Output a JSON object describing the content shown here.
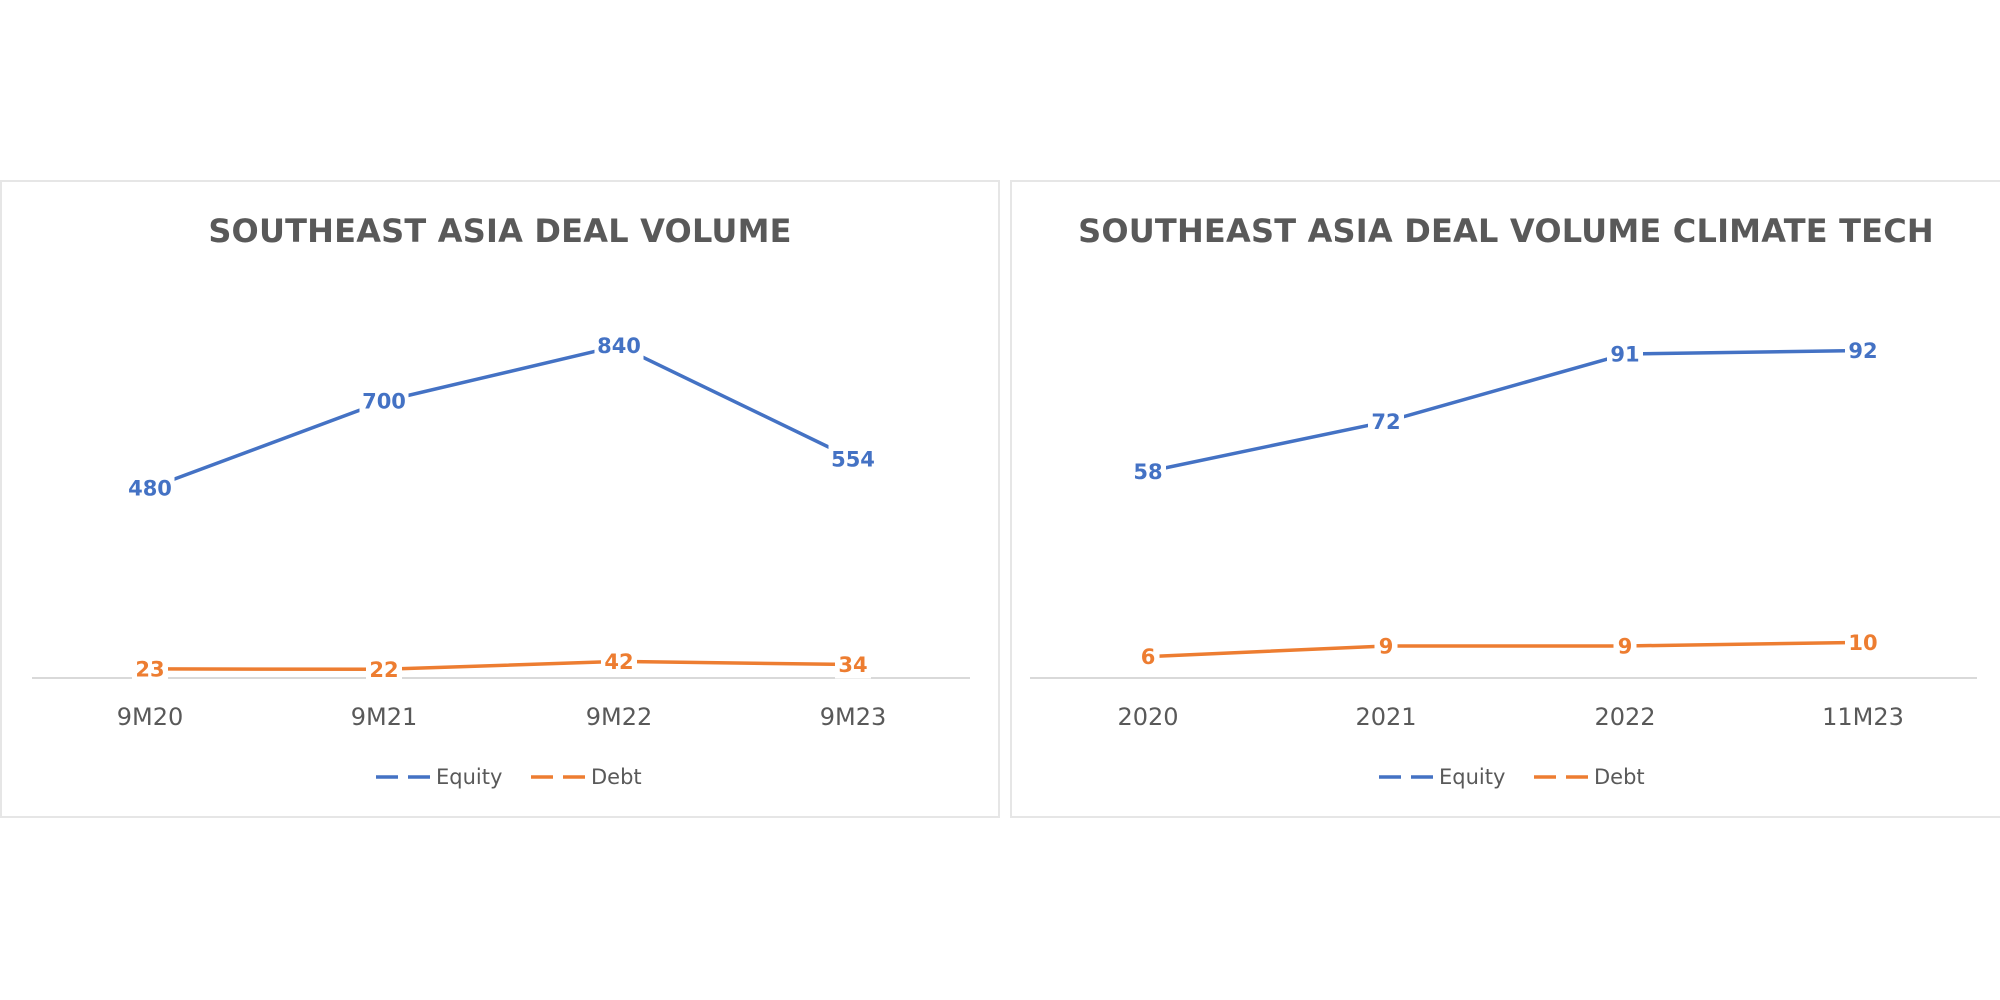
{
  "colors": {
    "equity": "#4472C4",
    "debt": "#ED7D31",
    "axis": "#D9D9D9",
    "text": "#595959"
  },
  "chart_data": [
    {
      "type": "line",
      "title": "SOUTHEAST ASIA DEAL VOLUME",
      "categories": [
        "9M20",
        "9M21",
        "9M22",
        "9M23"
      ],
      "series": [
        {
          "name": "Equity",
          "values": [
            480,
            700,
            840,
            554
          ]
        },
        {
          "name": "Debt",
          "values": [
            23,
            22,
            42,
            34
          ]
        }
      ],
      "ylim": [
        0,
        900
      ],
      "xlabel": "",
      "ylabel": "",
      "grid": false,
      "legend": "bottom"
    },
    {
      "type": "line",
      "title": "SOUTHEAST ASIA DEAL VOLUME CLIMATE TECH",
      "categories": [
        "2020",
        "2021",
        "2022",
        "11M23"
      ],
      "series": [
        {
          "name": "Equity",
          "values": [
            58,
            72,
            91,
            92
          ]
        },
        {
          "name": "Debt",
          "values": [
            6,
            9,
            9,
            10
          ]
        }
      ],
      "ylim": [
        0,
        100
      ],
      "xlabel": "",
      "ylabel": "",
      "grid": false,
      "legend": "bottom"
    }
  ]
}
